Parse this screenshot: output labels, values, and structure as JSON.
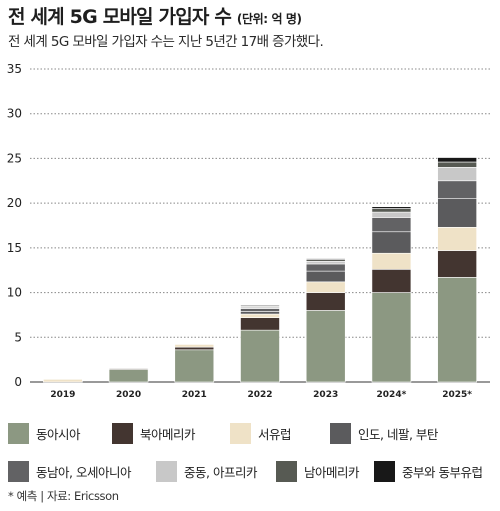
{
  "header": {
    "title": "전 세계 5G 모바일 가입자 수",
    "unit": "(단위: 억 명)",
    "subtitle": "전 세계 5G 모바일 가입자 수는 지난 5년간 17배 증가했다."
  },
  "footnote": "* 예측 | 자료: Ericsson",
  "chart_data": {
    "type": "bar",
    "stacked": true,
    "categories": [
      "2019",
      "2020",
      "2021",
      "2022",
      "2023",
      "2024*",
      "2025*"
    ],
    "ylim": [
      0,
      35
    ],
    "yticks": [
      "0",
      "5",
      "10",
      "15",
      "20",
      "25",
      "30",
      "35"
    ],
    "grid": "dotted-horizontal",
    "legend_position": "bottom",
    "series": [
      {
        "name": "동아시아",
        "color": "#8c9882",
        "values": [
          0.0,
          1.4,
          3.6,
          5.8,
          8.0,
          10.0,
          11.7
        ]
      },
      {
        "name": "북아메리카",
        "color": "#433530",
        "values": [
          0.0,
          0.1,
          0.3,
          1.4,
          2.0,
          2.6,
          3.0
        ]
      },
      {
        "name": "서유럽",
        "color": "#efe2c7",
        "values": [
          0.3,
          0.0,
          0.3,
          0.4,
          1.2,
          1.8,
          2.6
        ]
      },
      {
        "name": "인도, 네팔, 부탄",
        "color": "#5b5b5d",
        "values": [
          0.0,
          0.0,
          0.0,
          0.3,
          1.2,
          2.4,
          3.2
        ]
      },
      {
        "name": "동남아, 오세아니아",
        "color": "#626264",
        "values": [
          0.0,
          0.0,
          0.0,
          0.3,
          0.8,
          1.6,
          2.0
        ]
      },
      {
        "name": "중동, 아프리카",
        "color": "#c8c8c8",
        "values": [
          0.0,
          0.0,
          0.0,
          0.2,
          0.3,
          0.6,
          1.5
        ]
      },
      {
        "name": "남아메리카",
        "color": "#575a53",
        "values": [
          0.0,
          0.0,
          0.0,
          0.1,
          0.2,
          0.4,
          0.6
        ]
      },
      {
        "name": "중부와 동부유럽",
        "color": "#181818",
        "values": [
          0.0,
          0.0,
          0.0,
          0.1,
          0.1,
          0.2,
          0.5
        ]
      }
    ]
  }
}
